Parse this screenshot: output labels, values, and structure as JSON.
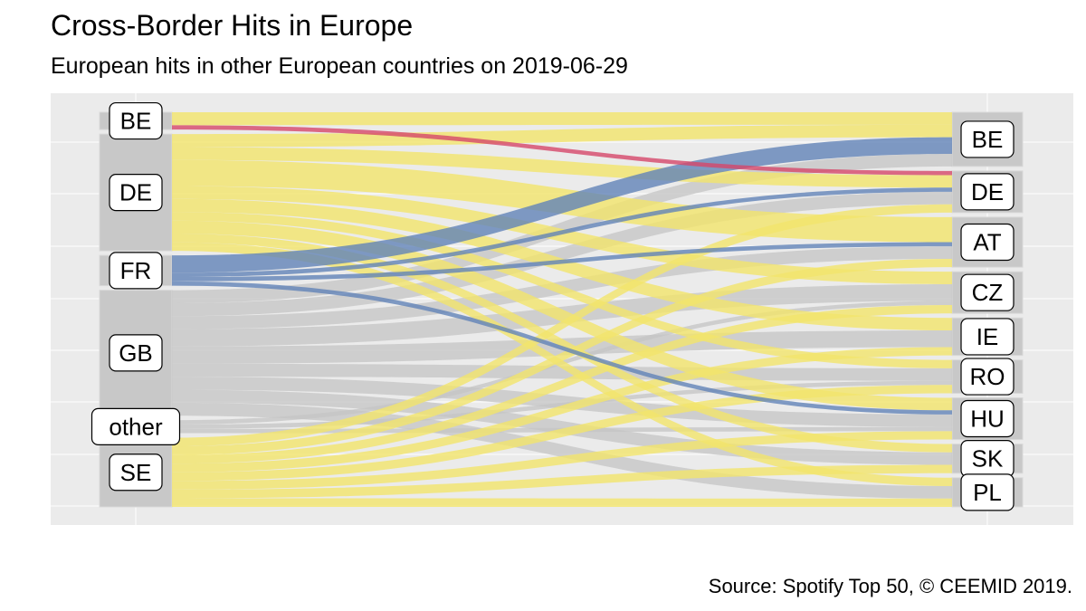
{
  "title": "Cross-Border Hits in Europe",
  "subtitle": "European hits in other European countries on  2019-06-29",
  "caption": "Source: Spotify Top 50, © CEEMID 2019.",
  "colors": {
    "panel": "#ebebeb",
    "grid": "#ffffff",
    "stratum": "#c8c8c8",
    "flow_yellow": "#f3e56b",
    "flow_grey": "#c4c4c4",
    "flow_blue": "#6283b8",
    "flow_red": "#d6476a"
  },
  "chart_data": {
    "type": "alluvial",
    "grid": true,
    "axes": [
      "origin",
      "destination"
    ],
    "origins": [
      "BE",
      "DE",
      "FR",
      "GB",
      "other",
      "SE"
    ],
    "destinations_visible": [
      "BE",
      "DE",
      "AT",
      "CZ",
      "IE",
      "RO",
      "HU",
      "SK",
      "PL"
    ],
    "flows": [
      {
        "from": "BE",
        "to": "BE",
        "color": "yellow",
        "weight": 3
      },
      {
        "from": "BE",
        "to": "DE",
        "color": "red",
        "weight": 1
      },
      {
        "from": "DE",
        "to": "BE",
        "color": "yellow",
        "weight": 3
      },
      {
        "from": "DE",
        "to": "DE",
        "color": "yellow",
        "weight": 3
      },
      {
        "from": "DE",
        "to": "AT",
        "color": "yellow",
        "weight": 6
      },
      {
        "from": "DE",
        "to": "CZ",
        "color": "yellow",
        "weight": 3
      },
      {
        "from": "DE",
        "to": "IE",
        "color": "yellow",
        "weight": 3
      },
      {
        "from": "DE",
        "to": "RO",
        "color": "yellow",
        "weight": 2
      },
      {
        "from": "DE",
        "to": "HU",
        "color": "yellow",
        "weight": 3
      },
      {
        "from": "DE",
        "to": "SK",
        "color": "yellow",
        "weight": 2
      },
      {
        "from": "DE",
        "to": "PL",
        "color": "yellow",
        "weight": 2
      },
      {
        "from": "FR",
        "to": "BE",
        "color": "blue",
        "weight": 4
      },
      {
        "from": "FR",
        "to": "DE",
        "color": "blue",
        "weight": 1
      },
      {
        "from": "FR",
        "to": "AT",
        "color": "blue",
        "weight": 1
      },
      {
        "from": "FR",
        "to": "HU",
        "color": "blue",
        "weight": 1
      },
      {
        "from": "GB",
        "to": "BE",
        "color": "grey",
        "weight": 3
      },
      {
        "from": "GB",
        "to": "DE",
        "color": "grey",
        "weight": 3
      },
      {
        "from": "GB",
        "to": "AT",
        "color": "grey",
        "weight": 3
      },
      {
        "from": "GB",
        "to": "CZ",
        "color": "grey",
        "weight": 4
      },
      {
        "from": "GB",
        "to": "IE",
        "color": "grey",
        "weight": 4
      },
      {
        "from": "GB",
        "to": "RO",
        "color": "grey",
        "weight": 3
      },
      {
        "from": "GB",
        "to": "HU",
        "color": "grey",
        "weight": 3
      },
      {
        "from": "GB",
        "to": "SK",
        "color": "grey",
        "weight": 3
      },
      {
        "from": "GB",
        "to": "PL",
        "color": "grey",
        "weight": 3
      },
      {
        "from": "other",
        "to": "CZ",
        "color": "grey",
        "weight": 1
      },
      {
        "from": "other",
        "to": "RO",
        "color": "grey",
        "weight": 1
      },
      {
        "from": "other",
        "to": "HU",
        "color": "grey",
        "weight": 1
      },
      {
        "from": "SE",
        "to": "DE",
        "color": "yellow",
        "weight": 2
      },
      {
        "from": "SE",
        "to": "AT",
        "color": "yellow",
        "weight": 2
      },
      {
        "from": "SE",
        "to": "CZ",
        "color": "yellow",
        "weight": 2
      },
      {
        "from": "SE",
        "to": "IE",
        "color": "yellow",
        "weight": 2
      },
      {
        "from": "SE",
        "to": "RO",
        "color": "yellow",
        "weight": 2
      },
      {
        "from": "SE",
        "to": "HU",
        "color": "yellow",
        "weight": 2
      },
      {
        "from": "SE",
        "to": "SK",
        "color": "yellow",
        "weight": 2
      },
      {
        "from": "SE",
        "to": "PL",
        "color": "yellow",
        "weight": 2
      }
    ]
  }
}
